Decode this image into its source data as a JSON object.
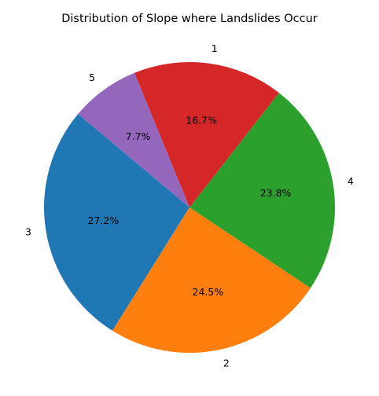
{
  "chart_data": {
    "type": "pie",
    "title": "Distribution of Slope where Landslides Occur",
    "slices": [
      {
        "label": "3",
        "value": 27.2,
        "pct_label": "27.2%",
        "color": "#1f77b4"
      },
      {
        "label": "2",
        "value": 24.5,
        "pct_label": "24.5%",
        "color": "#ff7f0e"
      },
      {
        "label": "4",
        "value": 23.8,
        "pct_label": "23.8%",
        "color": "#2ca02c"
      },
      {
        "label": "1",
        "value": 16.7,
        "pct_label": "16.7%",
        "color": "#d62728"
      },
      {
        "label": "5",
        "value": 7.7,
        "pct_label": "7.7%",
        "color": "#9467bd"
      }
    ],
    "start_angle_deg": 140,
    "direction": "counterclockwise",
    "legend": "none"
  }
}
